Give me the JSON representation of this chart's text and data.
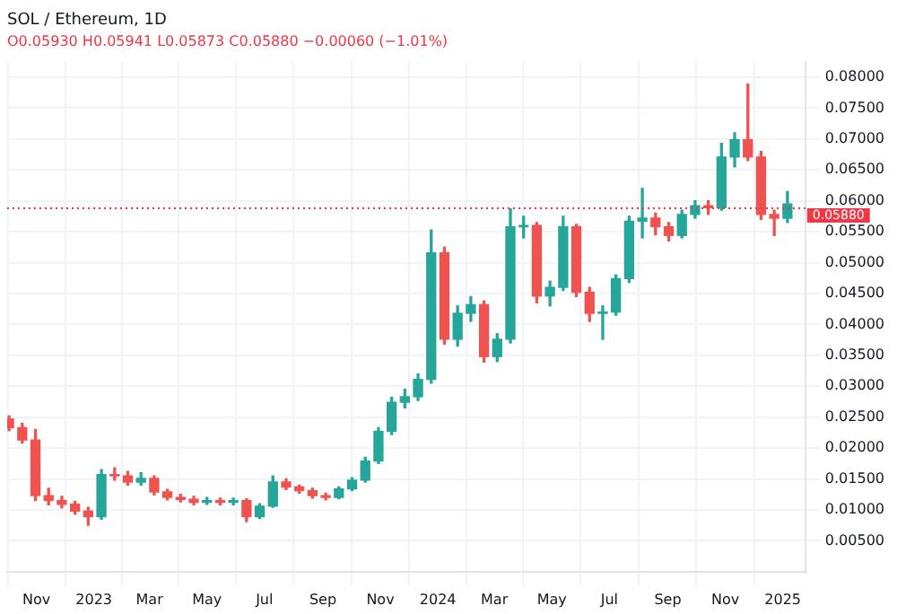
{
  "chart_data": {
    "type": "candlestick",
    "title": "SOL / Ethereum, 1D",
    "subtitle": "O0.05930 H0.05941 L0.05873 C0.05880 −0.00060 (−1.01%)",
    "colors": [
      "#ef5350",
      "#ef5350",
      "#ef5350",
      "#ef5350",
      "#ef5350",
      "#ef5350",
      "#ef5350",
      "#26a69a",
      "#ef5350",
      "#ef5350",
      "#26a69a",
      "#ef5350",
      "#ef5350",
      "#ef5350",
      "#ef5350",
      "#26a69a",
      "#ef5350",
      "#26a69a",
      "#ef5350",
      "#26a69a",
      "#26a69a",
      "#ef5350",
      "#ef5350",
      "#ef5350",
      "#ef5350",
      "#26a69a",
      "#26a69a",
      "#26a69a",
      "#26a69a",
      "#26a69a",
      "#26a69a",
      "#26a69a",
      "#26a69a",
      "#ef5350",
      "#26a69a",
      "#26a69a",
      "#ef5350",
      "#26a69a",
      "#26a69a",
      "#26a69a",
      "#ef5350",
      "#26a69a",
      "#26a69a",
      "#ef5350",
      "#ef5350",
      "#26a69a",
      "#26a69a",
      "#26a69a",
      "#26a69a",
      "#ef5350",
      "#ef5350",
      "#26a69a",
      "#26a69a",
      "#ef5350",
      "#26a69a",
      "#26a69a",
      "#ef5350",
      "#ef5350",
      "#ef5350",
      "#26a69a"
    ],
    "x": [
      "2022-10-03",
      "2022-10-17",
      "2022-10-31",
      "2022-11-14",
      "2022-11-28",
      "2022-12-12",
      "2022-12-26",
      "2023-01-09",
      "2023-01-23",
      "2023-02-06",
      "2023-02-20",
      "2023-03-06",
      "2023-03-20",
      "2023-04-03",
      "2023-04-17",
      "2023-05-01",
      "2023-05-15",
      "2023-05-29",
      "2023-06-12",
      "2023-06-26",
      "2023-07-10",
      "2023-07-24",
      "2023-08-07",
      "2023-08-21",
      "2023-09-04",
      "2023-09-18",
      "2023-10-02",
      "2023-10-16",
      "2023-10-30",
      "2023-11-13",
      "2023-11-27",
      "2023-12-11",
      "2023-12-25",
      "2024-01-08",
      "2024-01-22",
      "2024-02-05",
      "2024-02-19",
      "2024-03-04",
      "2024-03-18",
      "2024-04-01",
      "2024-04-15",
      "2024-04-29",
      "2024-05-13",
      "2024-05-27",
      "2024-06-10",
      "2024-06-24",
      "2024-07-08",
      "2024-07-22",
      "2024-08-05",
      "2024-08-19",
      "2024-09-02",
      "2024-09-16",
      "2024-09-30",
      "2024-10-14",
      "2024-10-28",
      "2024-11-11",
      "2024-11-25",
      "2024-12-09",
      "2024-12-23",
      "2025-01-06"
    ],
    "ohlc": [
      [
        0.0247,
        0.0252,
        0.0228,
        0.0233
      ],
      [
        0.0233,
        0.024,
        0.0208,
        0.0213
      ],
      [
        0.0213,
        0.023,
        0.0115,
        0.0123
      ],
      [
        0.0123,
        0.0135,
        0.0108,
        0.0115
      ],
      [
        0.0115,
        0.0122,
        0.0103,
        0.0109
      ],
      [
        0.0109,
        0.0114,
        0.0093,
        0.0098
      ],
      [
        0.0098,
        0.0104,
        0.0075,
        0.0089
      ],
      [
        0.0089,
        0.0165,
        0.0085,
        0.0157
      ],
      [
        0.0157,
        0.0168,
        0.0148,
        0.0155
      ],
      [
        0.0155,
        0.0162,
        0.014,
        0.0145
      ],
      [
        0.0145,
        0.016,
        0.014,
        0.0151
      ],
      [
        0.0151,
        0.0155,
        0.0124,
        0.0129
      ],
      [
        0.0129,
        0.0133,
        0.0116,
        0.012
      ],
      [
        0.012,
        0.0125,
        0.0113,
        0.0117
      ],
      [
        0.0117,
        0.0122,
        0.0108,
        0.0112
      ],
      [
        0.0112,
        0.012,
        0.0109,
        0.0115
      ],
      [
        0.0115,
        0.0119,
        0.0108,
        0.0112
      ],
      [
        0.0112,
        0.0119,
        0.0108,
        0.0115
      ],
      [
        0.0115,
        0.0118,
        0.0081,
        0.0089
      ],
      [
        0.0089,
        0.011,
        0.0086,
        0.0106
      ],
      [
        0.0106,
        0.0155,
        0.0104,
        0.0145
      ],
      [
        0.0145,
        0.015,
        0.0133,
        0.0137
      ],
      [
        0.0137,
        0.014,
        0.0127,
        0.0131
      ],
      [
        0.0131,
        0.0135,
        0.0119,
        0.0123
      ],
      [
        0.0123,
        0.0127,
        0.0116,
        0.012
      ],
      [
        0.012,
        0.0137,
        0.0118,
        0.0134
      ],
      [
        0.0134,
        0.0152,
        0.0131,
        0.0148
      ],
      [
        0.0148,
        0.0185,
        0.0145,
        0.0179
      ],
      [
        0.0179,
        0.0233,
        0.0175,
        0.0227
      ],
      [
        0.0227,
        0.0282,
        0.0222,
        0.0274
      ],
      [
        0.0274,
        0.0295,
        0.0265,
        0.0283
      ],
      [
        0.0283,
        0.032,
        0.0277,
        0.0311
      ],
      [
        0.0311,
        0.0553,
        0.0305,
        0.0516
      ],
      [
        0.0516,
        0.0525,
        0.0368,
        0.0376
      ],
      [
        0.0376,
        0.043,
        0.0365,
        0.0418
      ],
      [
        0.0418,
        0.0445,
        0.0405,
        0.0432
      ],
      [
        0.0432,
        0.0438,
        0.0339,
        0.0348
      ],
      [
        0.0348,
        0.0385,
        0.034,
        0.0376
      ],
      [
        0.0376,
        0.0587,
        0.037,
        0.0558
      ],
      [
        0.0558,
        0.0575,
        0.054,
        0.056
      ],
      [
        0.056,
        0.0565,
        0.0435,
        0.0446
      ],
      [
        0.0446,
        0.047,
        0.043,
        0.046
      ],
      [
        0.046,
        0.0575,
        0.0455,
        0.0558
      ],
      [
        0.0558,
        0.0562,
        0.0445,
        0.0452
      ],
      [
        0.0452,
        0.046,
        0.0405,
        0.0418
      ],
      [
        0.0418,
        0.043,
        0.0376,
        0.042
      ],
      [
        0.042,
        0.048,
        0.0415,
        0.0474
      ],
      [
        0.0474,
        0.0575,
        0.0468,
        0.0567
      ],
      [
        0.0567,
        0.062,
        0.054,
        0.0572
      ],
      [
        0.0572,
        0.058,
        0.0545,
        0.0558
      ],
      [
        0.0558,
        0.0565,
        0.0535,
        0.0544
      ],
      [
        0.0544,
        0.0585,
        0.054,
        0.0578
      ],
      [
        0.0578,
        0.06,
        0.0572,
        0.0592
      ],
      [
        0.0592,
        0.06,
        0.0578,
        0.0589
      ],
      [
        0.0589,
        0.0693,
        0.0585,
        0.0671
      ],
      [
        0.0671,
        0.071,
        0.0655,
        0.0699
      ],
      [
        0.0699,
        0.0789,
        0.0665,
        0.0671
      ],
      [
        0.0671,
        0.068,
        0.057,
        0.0578
      ],
      [
        0.0578,
        0.0585,
        0.0544,
        0.0572
      ],
      [
        0.0572,
        0.0615,
        0.0565,
        0.0595
      ]
    ],
    "xlim": [
      "2022-10-01",
      "2025-01-25"
    ],
    "xticks": [
      {
        "value": "2022-11-01",
        "label": "Nov"
      },
      {
        "value": "2023-01-01",
        "label": "2023"
      },
      {
        "value": "2023-03-01",
        "label": "Mar"
      },
      {
        "value": "2023-05-01",
        "label": "May"
      },
      {
        "value": "2023-07-01",
        "label": "Jul"
      },
      {
        "value": "2023-09-01",
        "label": "Sep"
      },
      {
        "value": "2023-11-01",
        "label": "Nov"
      },
      {
        "value": "2024-01-01",
        "label": "2024"
      },
      {
        "value": "2024-03-01",
        "label": "Mar"
      },
      {
        "value": "2024-05-01",
        "label": "May"
      },
      {
        "value": "2024-07-01",
        "label": "Jul"
      },
      {
        "value": "2024-09-01",
        "label": "Sep"
      },
      {
        "value": "2024-11-01",
        "label": "Nov"
      },
      {
        "value": "2025-01-01",
        "label": "2025"
      }
    ],
    "ylim": [
      0.0,
      0.0825
    ],
    "yticks": [
      {
        "value": 0.005,
        "label": "0.00500"
      },
      {
        "value": 0.01,
        "label": "0.01000"
      },
      {
        "value": 0.015,
        "label": "0.01500"
      },
      {
        "value": 0.02,
        "label": "0.02000"
      },
      {
        "value": 0.025,
        "label": "0.02500"
      },
      {
        "value": 0.03,
        "label": "0.03000"
      },
      {
        "value": 0.035,
        "label": "0.03500"
      },
      {
        "value": 0.04,
        "label": "0.04000"
      },
      {
        "value": 0.045,
        "label": "0.04500"
      },
      {
        "value": 0.05,
        "label": "0.05000"
      },
      {
        "value": 0.055,
        "label": "0.05500"
      },
      {
        "value": 0.06,
        "label": "0.06000"
      },
      {
        "value": 0.065,
        "label": "0.06500"
      },
      {
        "value": 0.07,
        "label": "0.07000"
      },
      {
        "value": 0.075,
        "label": "0.07500"
      },
      {
        "value": 0.08,
        "label": "0.08000"
      }
    ],
    "ref_lines": [
      {
        "axis": "y",
        "value": 0.0588,
        "label": "0.05880",
        "color": "#f23645",
        "line_style": "dotted"
      }
    ],
    "grid": true,
    "legend": false
  }
}
